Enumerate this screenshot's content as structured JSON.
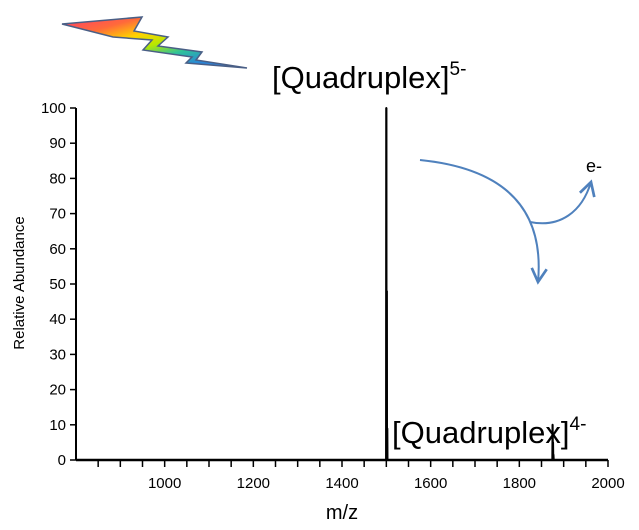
{
  "chart_data": {
    "type": "line",
    "title": "",
    "xlabel": "m/z",
    "ylabel": "Relative Abundance",
    "xlim": [
      800,
      2000
    ],
    "ylim": [
      0,
      100
    ],
    "xticks": [
      1000,
      1200,
      1400,
      1600,
      1800,
      2000
    ],
    "yticks": [
      0,
      10,
      20,
      30,
      40,
      50,
      60,
      70,
      80,
      90,
      100
    ],
    "x_minor_step": 50,
    "grid": false,
    "legend": "none",
    "series": [
      {
        "color": "#000000",
        "peaks": [
          {
            "mz": 1500,
            "abundance": 100
          },
          {
            "mz": 1501,
            "abundance": 48
          },
          {
            "mz": 1502,
            "abundance": 9
          },
          {
            "mz": 1875,
            "abundance": 10
          },
          {
            "mz": 1876,
            "abundance": 5
          },
          {
            "mz": 1877,
            "abundance": 1.5
          }
        ]
      }
    ],
    "annotations": [
      {
        "id": "peak-5",
        "base": "[Quadruplex]",
        "charge": "5-",
        "mz": 1500
      },
      {
        "id": "peak-4",
        "base": "[Quadruplex]",
        "charge": "4-",
        "mz": 1875
      },
      {
        "id": "electron",
        "text": "e-"
      }
    ],
    "colors": {
      "axis": "#000000",
      "trace": "#000000",
      "arrow": "#4f81bd",
      "bolt_outline": "#4a5f86"
    },
    "icons": [
      "lightning-bolt-icon",
      "electron-detachment-arrow-icon"
    ]
  }
}
